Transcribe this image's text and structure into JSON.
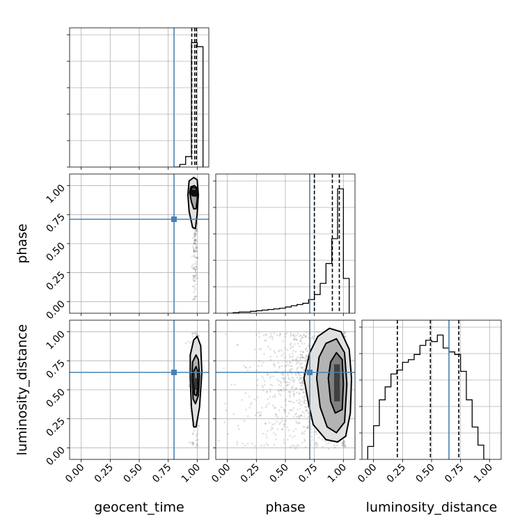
{
  "chart_data": {
    "type": "corner",
    "parameters": [
      "geocent_time",
      "phase",
      "luminosity_distance"
    ],
    "xlabels": [
      "geocent_time",
      "phase",
      "luminosity_distance"
    ],
    "ylabels": [
      "",
      "phase",
      "luminosity_distance"
    ],
    "tick_labels": [
      "0.00",
      "0.25",
      "0.50",
      "0.75",
      "1.00"
    ],
    "axis_range": [
      -0.1,
      1.1
    ],
    "truth_color": "#4682b4",
    "truths": {
      "geocent_time": 0.8,
      "phase": 0.71,
      "luminosity_distance": 0.65
    },
    "quantiles": {
      "geocent_time": [
        0.953,
        0.978,
        0.993
      ],
      "phase": [
        0.75,
        0.905,
        0.965
      ],
      "luminosity_distance": [
        0.205,
        0.49,
        0.735
      ]
    },
    "histograms": {
      "geocent_time": {
        "edges": [
          0.8,
          0.85,
          0.9,
          0.95,
          1.0,
          1.05
        ],
        "counts": [
          0.0,
          0.02,
          0.08,
          0.95,
          0.92
        ]
      },
      "phase": {
        "edges": [
          0.0,
          0.05,
          0.1,
          0.15,
          0.2,
          0.25,
          0.3,
          0.35,
          0.4,
          0.45,
          0.5,
          0.55,
          0.6,
          0.65,
          0.7,
          0.75,
          0.8,
          0.85,
          0.9,
          0.95,
          1.0,
          1.05
        ],
        "counts": [
          0.0,
          0.005,
          0.01,
          0.01,
          0.015,
          0.02,
          0.025,
          0.03,
          0.035,
          0.04,
          0.05,
          0.06,
          0.07,
          0.08,
          0.11,
          0.15,
          0.24,
          0.4,
          0.6,
          1.0,
          0.28
        ]
      },
      "luminosity_distance": {
        "edges": [
          -0.05,
          0.0,
          0.05,
          0.1,
          0.15,
          0.2,
          0.25,
          0.3,
          0.35,
          0.4,
          0.45,
          0.5,
          0.55,
          0.6,
          0.65,
          0.7,
          0.75,
          0.8,
          0.85,
          0.9,
          0.95,
          1.0
        ],
        "counts": [
          0.1,
          0.26,
          0.46,
          0.56,
          0.66,
          0.69,
          0.75,
          0.77,
          0.81,
          0.88,
          0.92,
          0.91,
          0.96,
          0.86,
          0.83,
          0.81,
          0.68,
          0.46,
          0.25,
          0.11,
          0.0
        ]
      }
    },
    "contours_2d": [
      {
        "x_param": "geocent_time",
        "y_param": "phase",
        "center": [
          0.98,
          0.93
        ],
        "levels": [
          {
            "fill": 0.12,
            "line": true,
            "points": [
              [
                0.92,
                0.92
              ],
              [
                0.93,
                0.78
              ],
              [
                0.96,
                0.64
              ],
              [
                0.985,
                0.63
              ],
              [
                1.0,
                0.76
              ],
              [
                1.01,
                0.92
              ],
              [
                1.0,
                1.05
              ],
              [
                0.97,
                1.07
              ],
              [
                0.93,
                1.04
              ]
            ]
          },
          {
            "fill": 0.35,
            "line": true,
            "points": [
              [
                0.935,
                0.94
              ],
              [
                0.95,
                0.86
              ],
              [
                0.97,
                0.8
              ],
              [
                0.99,
                0.8
              ],
              [
                1.0,
                0.88
              ],
              [
                1.0,
                0.98
              ],
              [
                0.975,
                1.0
              ],
              [
                0.945,
                0.99
              ]
            ]
          },
          {
            "fill": 0.55,
            "line": true,
            "points": [
              [
                0.945,
                0.95
              ],
              [
                0.955,
                0.915
              ],
              [
                0.985,
                0.91
              ],
              [
                1.0,
                0.95
              ],
              [
                0.99,
                0.98
              ],
              [
                0.955,
                0.985
              ]
            ]
          },
          {
            "fill": 0.95,
            "line": false,
            "points": [
              [
                0.94,
                0.965
              ],
              [
                0.94,
                0.92
              ],
              [
                1.005,
                0.92
              ],
              [
                1.005,
                0.965
              ]
            ]
          }
        ],
        "scatter": {
          "center": [
            0.98,
            0.55
          ],
          "spread": [
            0.012,
            0.3
          ],
          "count": 160
        }
      },
      {
        "x_param": "geocent_time",
        "y_param": "luminosity_distance",
        "center": [
          0.99,
          0.57
        ],
        "levels": [
          {
            "fill": 0.12,
            "line": true,
            "points": [
              [
                0.94,
                0.6
              ],
              [
                0.95,
                0.35
              ],
              [
                0.97,
                0.18
              ],
              [
                0.99,
                0.18
              ],
              [
                1.02,
                0.35
              ],
              [
                1.04,
                0.65
              ],
              [
                1.03,
                0.88
              ],
              [
                1.0,
                0.96
              ],
              [
                0.97,
                0.93
              ],
              [
                0.94,
                0.8
              ]
            ]
          },
          {
            "fill": 0.3,
            "line": true,
            "points": [
              [
                0.955,
                0.6
              ],
              [
                0.965,
                0.42
              ],
              [
                0.985,
                0.38
              ],
              [
                1.01,
                0.45
              ],
              [
                1.02,
                0.62
              ],
              [
                1.01,
                0.76
              ],
              [
                0.99,
                0.8
              ],
              [
                0.96,
                0.74
              ]
            ]
          },
          {
            "fill": 0.5,
            "line": true,
            "points": [
              [
                0.97,
                0.58
              ],
              [
                0.975,
                0.46
              ],
              [
                0.995,
                0.45
              ],
              [
                1.005,
                0.52
              ],
              [
                1.005,
                0.66
              ],
              [
                0.99,
                0.7
              ],
              [
                0.97,
                0.66
              ]
            ]
          },
          {
            "fill": 0.8,
            "line": false,
            "points": [
              [
                0.98,
                0.6
              ],
              [
                0.98,
                0.5
              ],
              [
                1.0,
                0.5
              ],
              [
                1.0,
                0.6
              ]
            ]
          }
        ],
        "scatter": {
          "center": [
            0.985,
            0.55
          ],
          "spread": [
            0.025,
            0.28
          ],
          "count": 220
        }
      },
      {
        "x_param": "phase",
        "y_param": "luminosity_distance",
        "center": [
          0.95,
          0.56
        ],
        "levels": [
          {
            "fill": 0.12,
            "line": true,
            "points": [
              [
                0.66,
                0.6
              ],
              [
                0.7,
                0.38
              ],
              [
                0.74,
                0.2
              ],
              [
                0.85,
                0.07
              ],
              [
                0.95,
                0.05
              ],
              [
                1.02,
                0.1
              ],
              [
                1.06,
                0.3
              ],
              [
                1.07,
                0.6
              ],
              [
                1.05,
                0.85
              ],
              [
                0.98,
                1.0
              ],
              [
                0.88,
                1.03
              ],
              [
                0.78,
                0.96
              ],
              [
                0.71,
                0.82
              ]
            ]
          },
          {
            "fill": 0.3,
            "line": true,
            "points": [
              [
                0.77,
                0.6
              ],
              [
                0.8,
                0.35
              ],
              [
                0.86,
                0.18
              ],
              [
                0.94,
                0.13
              ],
              [
                1.01,
                0.22
              ],
              [
                1.03,
                0.55
              ],
              [
                1.01,
                0.82
              ],
              [
                0.94,
                0.94
              ],
              [
                0.85,
                0.9
              ],
              [
                0.79,
                0.78
              ]
            ]
          },
          {
            "fill": 0.5,
            "line": true,
            "points": [
              [
                0.87,
                0.6
              ],
              [
                0.89,
                0.4
              ],
              [
                0.93,
                0.3
              ],
              [
                0.99,
                0.33
              ],
              [
                1.0,
                0.55
              ],
              [
                0.99,
                0.76
              ],
              [
                0.94,
                0.82
              ],
              [
                0.89,
                0.74
              ]
            ]
          },
          {
            "fill": 0.75,
            "line": false,
            "points": [
              [
                0.92,
                0.72
              ],
              [
                0.92,
                0.4
              ],
              [
                0.97,
                0.4
              ],
              [
                0.97,
                0.72
              ]
            ]
          }
        ],
        "scatter": {
          "center": [
            0.72,
            0.55
          ],
          "spread": [
            0.28,
            0.28
          ],
          "count": 1100
        }
      }
    ]
  }
}
